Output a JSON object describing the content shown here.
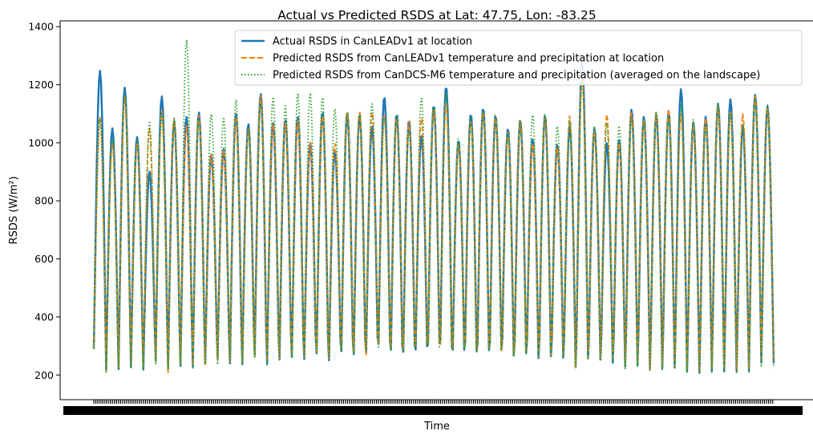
{
  "chart_data": {
    "type": "line",
    "title": "Actual vs Predicted RSDS at Lat: 47.75, Lon: -83.25",
    "xlabel": "Time",
    "ylabel": "RSDS (W/m²)",
    "ylim": [
      115,
      1420
    ],
    "yticks": [
      200,
      400,
      600,
      800,
      1000,
      1200,
      1400
    ],
    "grid": false,
    "legend_position": "top-right",
    "n_points": 660,
    "n_cycles": 55,
    "series": [
      {
        "name": "Actual RSDS in CanLEADv1 at location",
        "color": "#1f77b4",
        "style": "solid",
        "peaks": [
          1248,
          1050,
          1190,
          1020,
          900,
          1160,
          1075,
          1090,
          1105,
          960,
          980,
          1100,
          1065,
          1170,
          1070,
          1080,
          1090,
          1000,
          1105,
          975,
          1105,
          1100,
          1060,
          1160,
          1100,
          1080,
          1030,
          1130,
          1195,
          1010,
          1100,
          1120,
          1095,
          1050,
          1080,
          1015,
          1095,
          995,
          1060,
          1280,
          1050,
          1000,
          1010,
          1115,
          1090,
          1100,
          1110,
          1185,
          1070,
          1090,
          1135,
          1150,
          1060,
          1165,
          1125
        ],
        "troughs": [
          290,
          215,
          215,
          220,
          210,
          235,
          205,
          210,
          205,
          215,
          230,
          205,
          200,
          225,
          195,
          205,
          210,
          205,
          215,
          195,
          215,
          200,
          205,
          225,
          205,
          195,
          205,
          210,
          215,
          195,
          210,
          200,
          205,
          215,
          200,
          210,
          200,
          205,
          210,
          175,
          200,
          210,
          205,
          195,
          200,
          190,
          195,
          200,
          190,
          190,
          200,
          200,
          205,
          210,
          240
        ]
      },
      {
        "name": "Predicted RSDS from CanLEADv1 temperature and precipitation at location",
        "color": "#ff7f0e",
        "style": "dashed",
        "peaks": [
          1090,
          1000,
          1160,
          1000,
          1050,
          1110,
          1080,
          1060,
          1095,
          960,
          975,
          1090,
          1050,
          1165,
          1065,
          1070,
          1080,
          1005,
          1095,
          1000,
          1110,
          1110,
          1110,
          1100,
          1090,
          1080,
          1090,
          1120,
          1140,
          1000,
          1080,
          1110,
          1090,
          1040,
          1075,
          1000,
          1090,
          985,
          1095,
          1245,
          1040,
          1100,
          1000,
          1105,
          1080,
          1100,
          1115,
          1100,
          1060,
          1085,
          1130,
          1110,
          1100,
          1160,
          1120
        ],
        "troughs": [
          295,
          210,
          220,
          225,
          215,
          230,
          190,
          215,
          210,
          210,
          225,
          210,
          205,
          220,
          205,
          210,
          215,
          210,
          220,
          200,
          220,
          205,
          190,
          230,
          210,
          205,
          210,
          215,
          210,
          200,
          215,
          205,
          210,
          210,
          205,
          215,
          205,
          210,
          215,
          170,
          205,
          215,
          210,
          200,
          205,
          185,
          200,
          205,
          195,
          195,
          205,
          205,
          210,
          215,
          245
        ]
      },
      {
        "name": "Predicted RSDS from CanDCS-M6 temperature and precipitation (averaged on the landscape)",
        "color": "#2ca02c",
        "style": "dotted",
        "peaks": [
          1080,
          1010,
          1170,
          1010,
          1070,
          1100,
          1085,
          1355,
          1080,
          1100,
          1090,
          1150,
          1050,
          1140,
          1160,
          1130,
          1170,
          1175,
          1160,
          1120,
          1110,
          1100,
          1140,
          1090,
          1100,
          1050,
          1160,
          1130,
          1180,
          1020,
          1090,
          1110,
          1100,
          1040,
          1080,
          1100,
          1100,
          1060,
          1080,
          1220,
          1060,
          1070,
          1060,
          1090,
          1080,
          1110,
          1090,
          1130,
          1080,
          1060,
          1130,
          1100,
          1060,
          1150,
          1130
        ],
        "troughs": [
          290,
          205,
          210,
          215,
          205,
          225,
          200,
          205,
          200,
          210,
          205,
          210,
          200,
          215,
          185,
          210,
          205,
          200,
          210,
          195,
          215,
          200,
          205,
          220,
          200,
          200,
          200,
          205,
          200,
          195,
          210,
          195,
          205,
          210,
          195,
          205,
          200,
          200,
          205,
          175,
          195,
          205,
          200,
          185,
          195,
          180,
          190,
          195,
          185,
          185,
          195,
          195,
          200,
          205,
          225
        ]
      }
    ]
  }
}
